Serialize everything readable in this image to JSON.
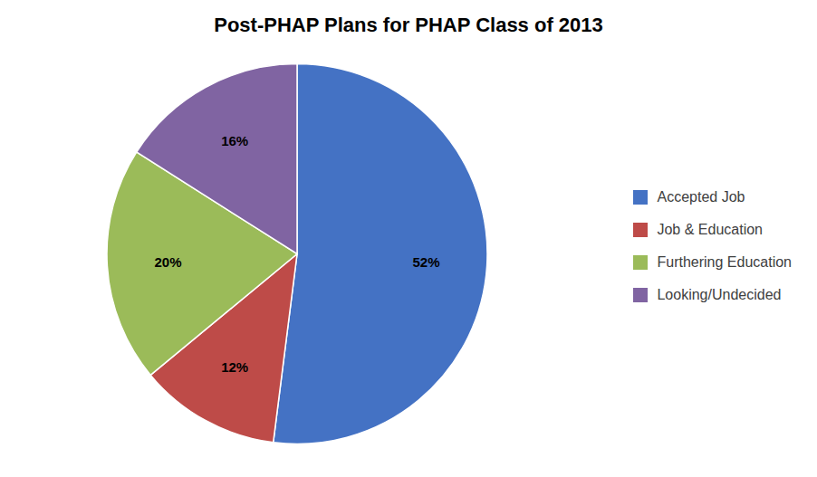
{
  "chart_data": {
    "type": "pie",
    "title": "Post-PHAP Plans for PHAP Class of 2013",
    "categories": [
      "Accepted Job",
      "Job & Education",
      "Furthering Education",
      "Looking/Undecided"
    ],
    "values": [
      52,
      12,
      20,
      16
    ],
    "value_labels": [
      "52%",
      "12%",
      "20%",
      "16%"
    ],
    "colors": [
      "#4472C4",
      "#BE4B48",
      "#9BBB59",
      "#8064A2"
    ],
    "data_labels": true,
    "legend": "right"
  }
}
